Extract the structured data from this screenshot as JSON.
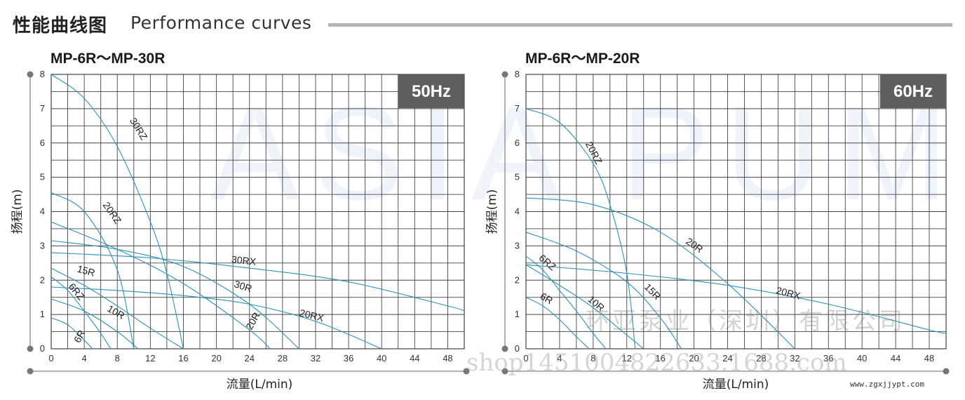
{
  "header": {
    "title_cn": "性能曲线图",
    "title_en": "Performance curves"
  },
  "watermark": "ASIA PUMP",
  "stamps": {
    "company": "环亚泵业（深圳）有限公司",
    "shop": "shop1451004822633.1688.com",
    "site": "www.zgxjjypt.com"
  },
  "colors": {
    "curve": "#2c93b8",
    "grid": "#444444",
    "badge_bg": "#5e5e5e",
    "badge_text": "#ffffff"
  },
  "chart_data": [
    {
      "type": "line",
      "title": "MP-6R～MP-30R",
      "badge": "50Hz",
      "xlabel": "流量(L/min)",
      "ylabel": "扬程(m)",
      "xlim": [
        0,
        50
      ],
      "ylim": [
        0,
        8
      ],
      "xticks": [
        0,
        4,
        8,
        12,
        16,
        20,
        24,
        28,
        32,
        36,
        40,
        44,
        48
      ],
      "yticks": [
        0,
        1,
        2,
        3,
        4,
        5,
        6,
        7,
        8
      ],
      "grid": true,
      "series": [
        {
          "name": "6R",
          "x": [
            0,
            2,
            4,
            5
          ],
          "y": [
            0.9,
            0.7,
            0.25,
            0
          ]
        },
        {
          "name": "6RZ",
          "x": [
            0,
            2,
            4,
            6,
            7.2
          ],
          "y": [
            2.1,
            1.7,
            1.1,
            0.45,
            0
          ]
        },
        {
          "name": "10R",
          "x": [
            0,
            4,
            8,
            10.5
          ],
          "y": [
            1.45,
            1.1,
            0.5,
            0
          ]
        },
        {
          "name": "15R",
          "x": [
            0,
            4,
            8,
            12,
            16
          ],
          "y": [
            2.35,
            1.85,
            1.25,
            0.6,
            0
          ]
        },
        {
          "name": "20RZ",
          "x": [
            0,
            4,
            8,
            10
          ],
          "y": [
            4.55,
            4.0,
            2.3,
            0
          ]
        },
        {
          "name": "30RZ",
          "x": [
            0,
            4,
            8,
            12,
            14,
            16
          ],
          "y": [
            8.0,
            7.3,
            5.9,
            3.7,
            2.2,
            0
          ]
        },
        {
          "name": "30R",
          "x": [
            0,
            8,
            16,
            24,
            30
          ],
          "y": [
            3.15,
            2.9,
            2.4,
            1.3,
            0
          ]
        },
        {
          "name": "30RX",
          "x": [
            0,
            12,
            24,
            36,
            48,
            50
          ],
          "y": [
            2.8,
            2.65,
            2.35,
            1.95,
            1.25,
            1.1
          ]
        },
        {
          "name": "20R",
          "x": [
            0,
            8,
            16,
            24,
            26.5
          ],
          "y": [
            3.7,
            2.9,
            1.9,
            0.55,
            0
          ]
        },
        {
          "name": "20RX",
          "x": [
            0,
            8,
            16,
            24,
            32,
            40
          ],
          "y": [
            1.8,
            1.7,
            1.55,
            1.3,
            0.8,
            0
          ]
        }
      ]
    },
    {
      "type": "line",
      "title": "MP-6R～MP-20R",
      "badge": "60Hz",
      "xlabel": "流量(L/min)",
      "ylabel": "扬程(m)",
      "xlim": [
        0,
        50
      ],
      "ylim": [
        0,
        8
      ],
      "xticks": [
        0,
        4,
        8,
        12,
        16,
        20,
        24,
        28,
        32,
        36,
        40,
        44,
        48
      ],
      "yticks": [
        0,
        1,
        2,
        3,
        4,
        5,
        6,
        7,
        8
      ],
      "grid": true,
      "series": [
        {
          "name": "6R",
          "x": [
            0,
            2,
            4,
            6,
            7.5
          ],
          "y": [
            1.5,
            1.25,
            0.85,
            0.35,
            0
          ]
        },
        {
          "name": "6RZ",
          "x": [
            0,
            2,
            4,
            6,
            8,
            9.5
          ],
          "y": [
            2.7,
            2.3,
            1.7,
            1.1,
            0.45,
            0
          ]
        },
        {
          "name": "10R",
          "x": [
            0,
            4,
            8,
            12,
            14
          ],
          "y": [
            2.45,
            1.85,
            1.2,
            0.4,
            0
          ]
        },
        {
          "name": "15R",
          "x": [
            0,
            6,
            12,
            16,
            18.5
          ],
          "y": [
            3.4,
            2.85,
            1.95,
            0.9,
            0
          ]
        },
        {
          "name": "20RZ",
          "x": [
            0,
            4,
            8,
            10,
            12,
            13
          ],
          "y": [
            7.0,
            6.6,
            5.4,
            4.2,
            2.2,
            0
          ]
        },
        {
          "name": "20R",
          "x": [
            0,
            8,
            16,
            24,
            32
          ],
          "y": [
            4.4,
            4.2,
            3.4,
            1.9,
            0
          ]
        },
        {
          "name": "20RX",
          "x": [
            0,
            12,
            24,
            36,
            48,
            50
          ],
          "y": [
            2.45,
            2.2,
            1.85,
            1.3,
            0.55,
            0.45
          ]
        }
      ]
    }
  ]
}
